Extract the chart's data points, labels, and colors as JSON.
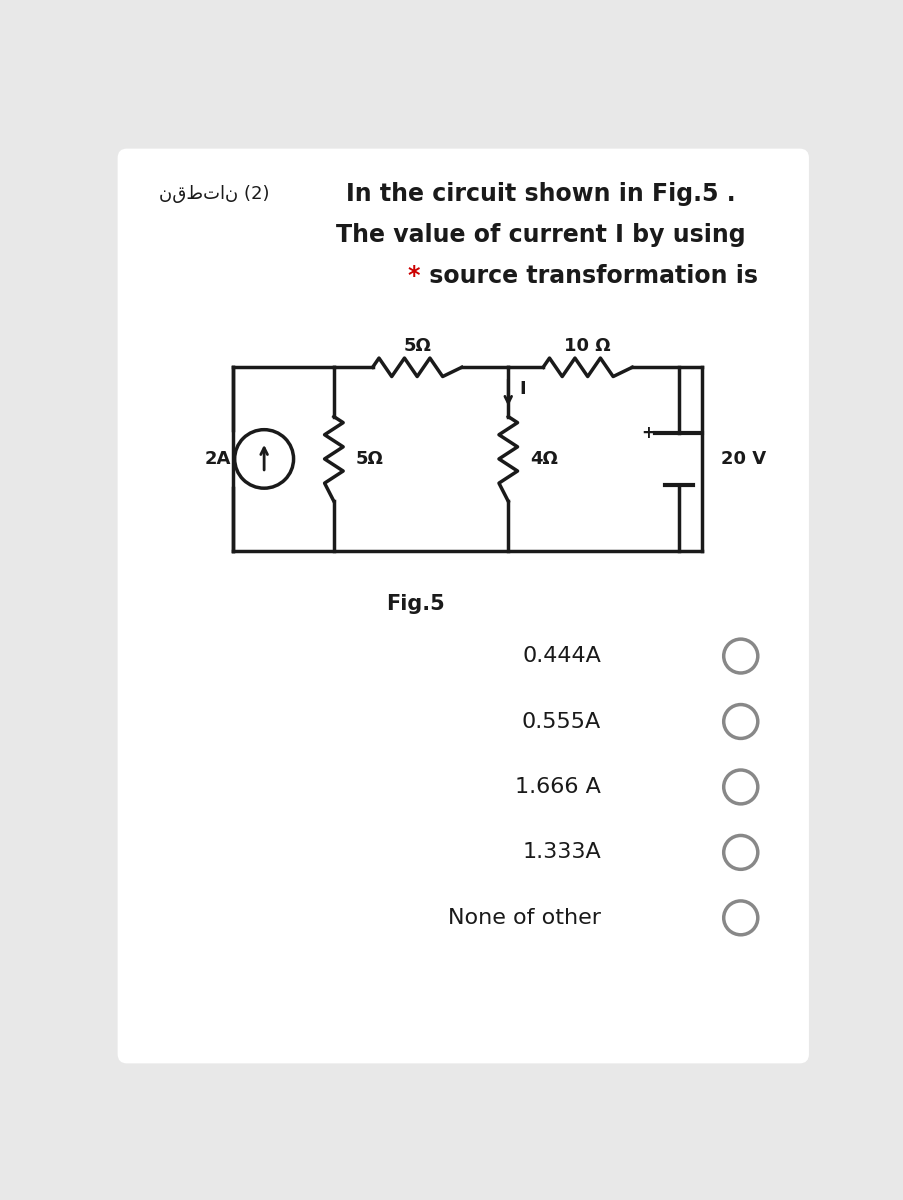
{
  "bg_color": "#e8e8e8",
  "card_color": "#ffffff",
  "title_line1": "In the circuit shown in Fig.5 .",
  "title_line2": "The value of current I by using",
  "title_line3_star": "*",
  "title_line3_rest": " source transformation is",
  "star_color": "#cc0000",
  "arabic_text": "نقطتان (2)",
  "fig_label": "Fig.5",
  "choices": [
    "0.444A",
    "0.555A",
    "1.666 A",
    "1.333A",
    "None of other"
  ],
  "text_color": "#1a1a1a",
  "line_color": "#1a1a1a",
  "circle_edge_color": "#888888",
  "font_size_title": 17,
  "font_size_circuit": 13,
  "font_size_choices": 16
}
